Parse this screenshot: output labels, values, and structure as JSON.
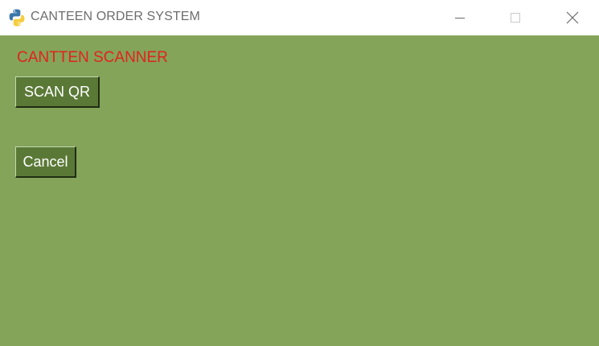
{
  "window": {
    "title": "CANTEEN ORDER SYSTEM",
    "app_icon": "python-icon",
    "controls": {
      "minimize_icon": "minimize-icon",
      "maximize_icon": "maximize-icon",
      "close_icon": "close-icon"
    }
  },
  "main": {
    "heading": "CANTTEN SCANNER",
    "scan_button_label": "SCAN QR",
    "cancel_button_label": "Cancel"
  },
  "colors": {
    "background": "#84a45a",
    "heading": "#e1231b",
    "button_face": "#5a7937",
    "button_text": "#ffffff"
  }
}
